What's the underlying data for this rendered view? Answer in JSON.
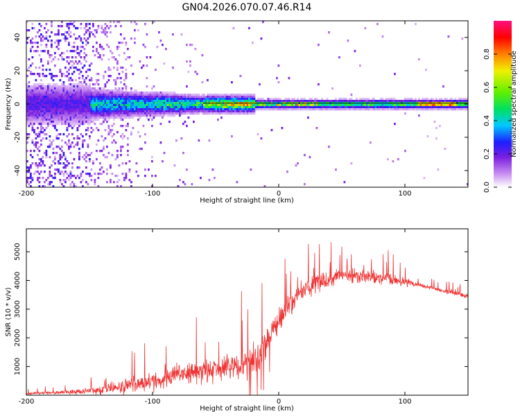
{
  "title": "GN04.2026.070.07.46.R14",
  "chart_data": [
    {
      "type": "heatmap",
      "xlabel": "Height of straight line (km)",
      "ylabel": "Frequency (Hz)",
      "xlim": [
        -200,
        150
      ],
      "ylim": [
        -50,
        50
      ],
      "xticks": [
        -200,
        -100,
        0,
        100
      ],
      "yticks": [
        -40,
        -20,
        0,
        20,
        40
      ],
      "colorbar": {
        "label": "Normalized spectral amplitude",
        "range": [
          0,
          1
        ],
        "ticks": [
          0.0,
          0.2,
          0.4,
          0.6,
          0.8
        ],
        "tick_labels": [
          "0.0",
          "0.2",
          "0.4",
          "0.6",
          "0.8"
        ],
        "colors": [
          "#ffffff",
          "#c890f0",
          "#7b1fe0",
          "#1e1eff",
          "#00c8ff",
          "#00e060",
          "#60f000",
          "#f0f000",
          "#ff8000",
          "#ff0000",
          "#ff1080"
        ]
      },
      "description_points": {
        "noise_region_x": [
          -200,
          -120
        ],
        "signal_line_freq_hz": 0.5,
        "signal_spread_hz": [
          [
            -150,
            8
          ],
          [
            -100,
            6
          ],
          [
            -60,
            4
          ],
          [
            -20,
            3
          ],
          [
            0,
            2
          ],
          [
            100,
            2
          ],
          [
            150,
            2
          ]
        ]
      }
    },
    {
      "type": "line",
      "xlabel": "Height of straight line (km)",
      "ylabel": "SNR (10 * v/v)",
      "xlim": [
        -200,
        150
      ],
      "ylim": [
        0,
        5800
      ],
      "xticks": [
        -200,
        -100,
        0,
        100
      ],
      "yticks": [
        1000,
        2000,
        3000,
        4000,
        5000
      ],
      "series": [
        {
          "name": "SNR",
          "color": "#ee3333",
          "x": [
            -200,
            -180,
            -160,
            -140,
            -120,
            -100,
            -80,
            -60,
            -40,
            -30,
            -20,
            -15,
            -10,
            -5,
            0,
            10,
            20,
            30,
            40,
            50,
            60,
            70,
            80,
            90,
            100,
            110,
            120,
            130,
            140,
            150
          ],
          "mean": [
            60,
            90,
            120,
            200,
            320,
            500,
            700,
            850,
            950,
            1050,
            1150,
            1400,
            1800,
            2200,
            2600,
            3200,
            3700,
            3900,
            4050,
            4200,
            4150,
            4100,
            4050,
            4000,
            3950,
            3850,
            3750,
            3650,
            3550,
            3450
          ],
          "spread": [
            40,
            60,
            120,
            200,
            300,
            400,
            500,
            550,
            600,
            650,
            700,
            700,
            650,
            600,
            550,
            500,
            450,
            400,
            380,
            350,
            320,
            300,
            280,
            260,
            220,
            120,
            110,
            100,
            100,
            100
          ]
        }
      ]
    }
  ]
}
